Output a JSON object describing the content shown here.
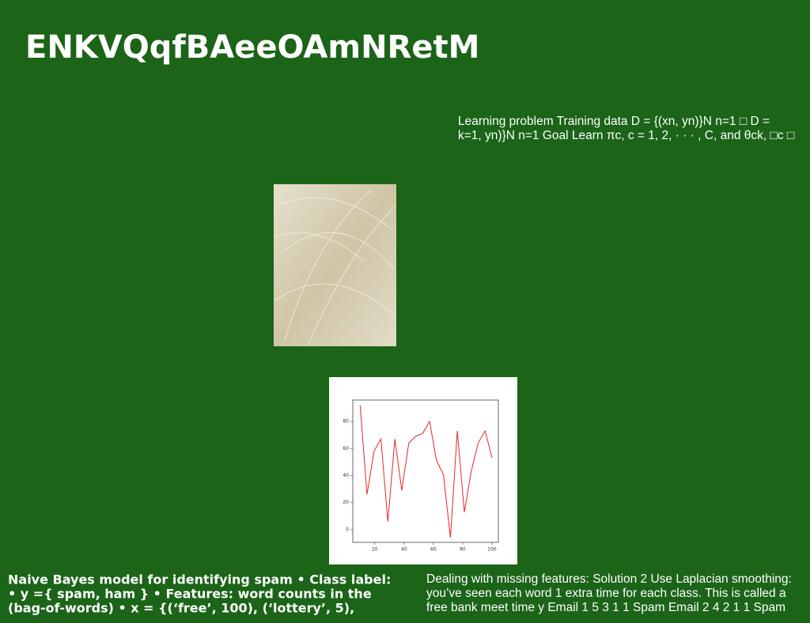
{
  "title": "ENKVQqfBAeeOAmNRetM",
  "top_text": [
    "Learning problem Training data D = {(xn, yn)}N n=1 □ D =",
    "k=1, yn)}N n=1 Goal Learn πc, c = 1, 2, · · · , C, and θck, □c □"
  ],
  "bottom_left_text": [
    "Naive Bayes model for identifying spam • Class label:",
    "• y ={ spam, ham } • Features: word counts in the",
    "(bag-of-words) • x = {(‘free’, 100), (‘lottery’, 5),"
  ],
  "bottom_right_text": [
    "Dealing with missing features: Solution 2 Use Laplacian smoothing:",
    "you’ve seen each word 1 extra time for each class. This is called a",
    "free bank meet time y Email 1 5 3 1 1 Spam Email 2 4 2 1 1 Spam"
  ],
  "chart_data": {
    "type": "line",
    "x": [
      10,
      14.7,
      19.5,
      24.2,
      28.9,
      33.7,
      38.4,
      43.2,
      47.9,
      52.6,
      57.4,
      62.1,
      66.8,
      71.6,
      76.3,
      81.1,
      85.8,
      90.5,
      95.3,
      100
    ],
    "values": [
      92,
      26,
      58,
      67,
      6,
      67,
      29,
      64,
      69,
      71,
      80,
      51,
      41,
      -6,
      73,
      13,
      43,
      64,
      73,
      53
    ],
    "color": "#e8262a",
    "xlim": [
      5,
      104.3
    ],
    "xticks": [
      20,
      40,
      60,
      80,
      100
    ],
    "ylim": [
      -9.4,
      95.8
    ],
    "yticks": [
      0,
      20,
      40,
      60,
      80
    ]
  }
}
